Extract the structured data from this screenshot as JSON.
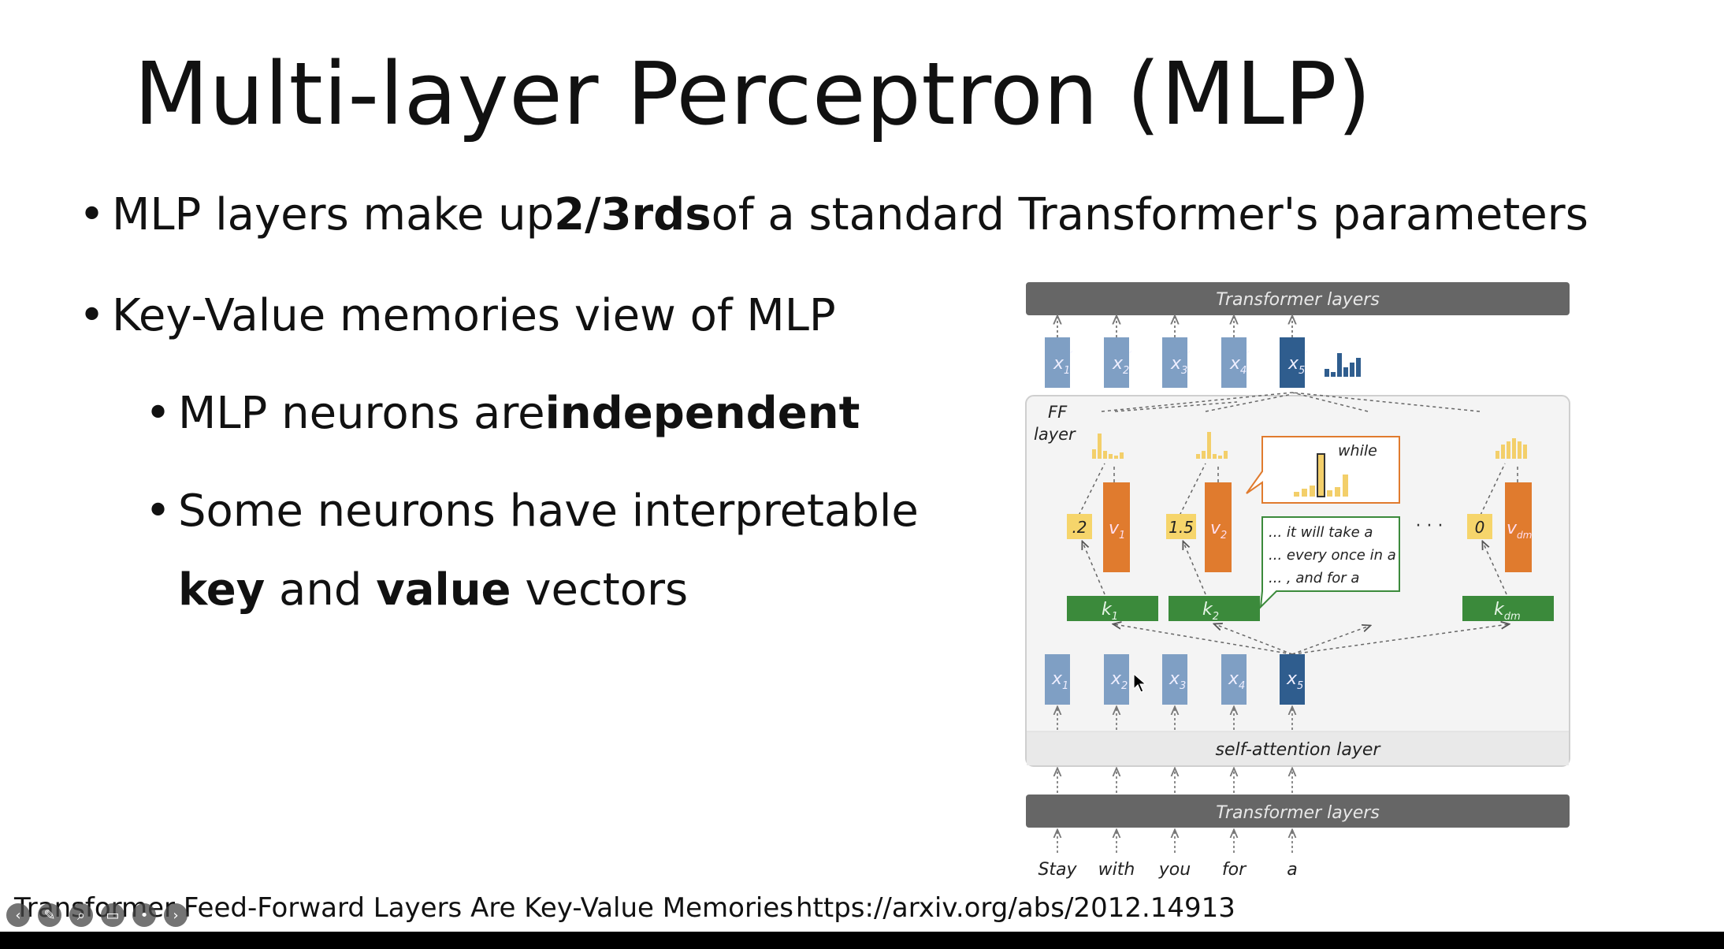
{
  "slide": {
    "title": "Multi-layer Perceptron (MLP)",
    "bullet_symbol": "•",
    "bullets": [
      {
        "pre": "MLP layers make up ",
        "bold": "2/3rds",
        "post": " of a standard Transformer's parameters"
      },
      {
        "text": "Key-Value memories view of MLP"
      },
      {
        "pre": "MLP neurons are ",
        "bold": "independent",
        "post": ""
      },
      {
        "line1": "Some neurons have interpretable",
        "bold1": "key",
        "mid": " and ",
        "bold2": "value",
        "post": " vectors"
      }
    ],
    "footer": {
      "reference": "Transformer Feed-Forward Layers Are Key-Value Memories",
      "url": "https://arxiv.org/abs/2012.14913"
    }
  },
  "diagram": {
    "top_bar": "Transformer layers",
    "bottom_bar": "Transformer layers",
    "ff_label_1": "FF",
    "ff_label_2": "layer",
    "self_attention": "self-attention layer",
    "outputs": [
      {
        "base": "x",
        "sub": "1",
        "sup": "′"
      },
      {
        "base": "x",
        "sub": "2",
        "sup": "′"
      },
      {
        "base": "x",
        "sub": "3",
        "sup": "′"
      },
      {
        "base": "x",
        "sub": "4",
        "sup": "′"
      },
      {
        "base": "x",
        "sub": "5",
        "sup": "′"
      }
    ],
    "inputs": [
      {
        "base": "x",
        "sub": "1"
      },
      {
        "base": "x",
        "sub": "2"
      },
      {
        "base": "x",
        "sub": "3"
      },
      {
        "base": "x",
        "sub": "4"
      },
      {
        "base": "x",
        "sub": "5"
      }
    ],
    "keys": [
      {
        "base": "k",
        "sub": "1"
      },
      {
        "base": "k",
        "sub": "2"
      },
      {
        "base": "k",
        "sub": "dm"
      }
    ],
    "values": [
      {
        "base": "v",
        "sub": "1"
      },
      {
        "base": "v",
        "sub": "2"
      },
      {
        "base": "v",
        "sub": "dm"
      }
    ],
    "coefficients": [
      ".2",
      "1.5",
      "0"
    ],
    "ellipsis": "· · ·",
    "value_callout_word": "while",
    "key_callout_lines": [
      "... it will take a",
      "... every once in a",
      "... , and for a"
    ],
    "words": [
      "Stay",
      "with",
      "you",
      "for",
      "a"
    ],
    "colors": {
      "bar_gray": "#666666",
      "token_light": "#7f9fc4",
      "token_dark": "#2f5d8e",
      "value_orange": "#e07b2e",
      "key_green": "#3b8a3b",
      "coef_yellow": "#f6d56b",
      "hist_yellow": "#f3cf6a",
      "panel_gray": "#eeeeee"
    }
  },
  "toolbar": {
    "icons": [
      "back-arrow-icon",
      "pen-icon",
      "zoom-icon",
      "screen-icon",
      "more-icon",
      "forward-arrow-icon"
    ],
    "glyphs": [
      "‹",
      "✎",
      "⌕",
      "▭",
      "•",
      "›"
    ]
  }
}
